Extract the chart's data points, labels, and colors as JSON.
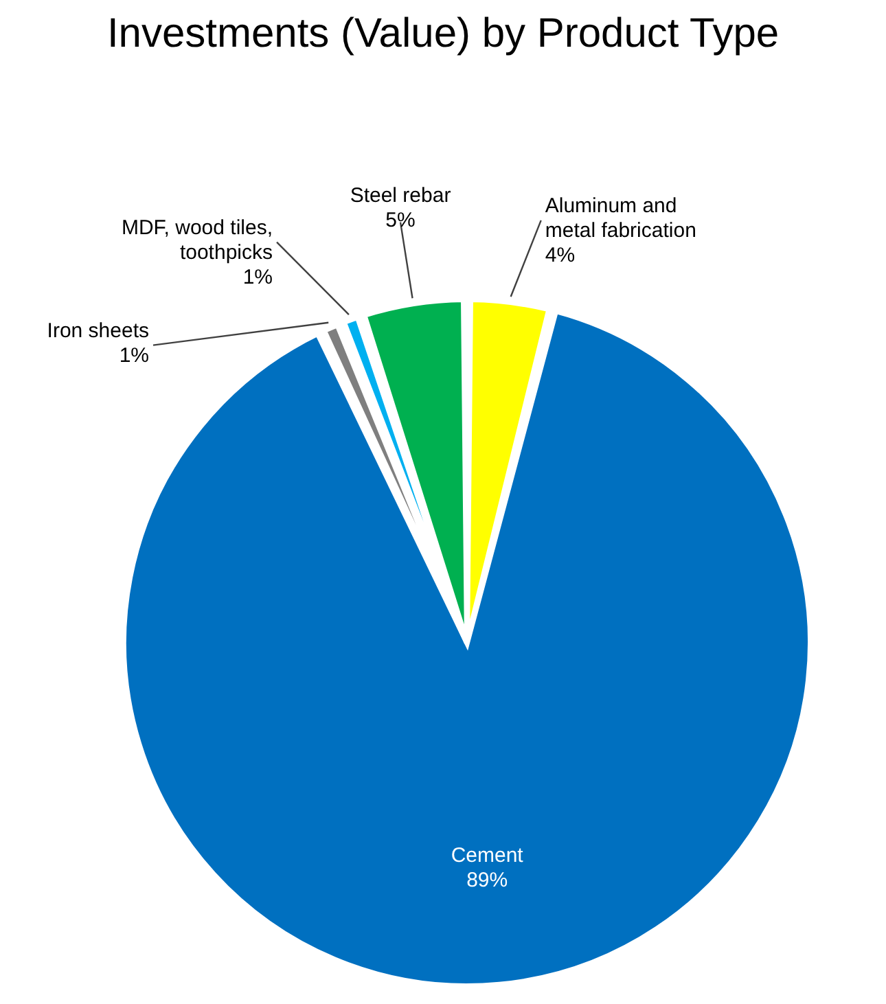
{
  "chart_data": {
    "type": "pie",
    "title": "Investments (Value) by Product Type",
    "categories": [
      "Aluminum and metal fabrication",
      "Cement",
      "Iron sheets",
      "MDF, wood tiles, toothpicks",
      "Steel rebar"
    ],
    "values": [
      4,
      89,
      1,
      1,
      5
    ],
    "colors": [
      "#ffff00",
      "#0070c0",
      "#7f7f7f",
      "#00b0f0",
      "#00b050"
    ],
    "value_labels": [
      "4%",
      "89%",
      "1%",
      "1%",
      "5%"
    ]
  }
}
